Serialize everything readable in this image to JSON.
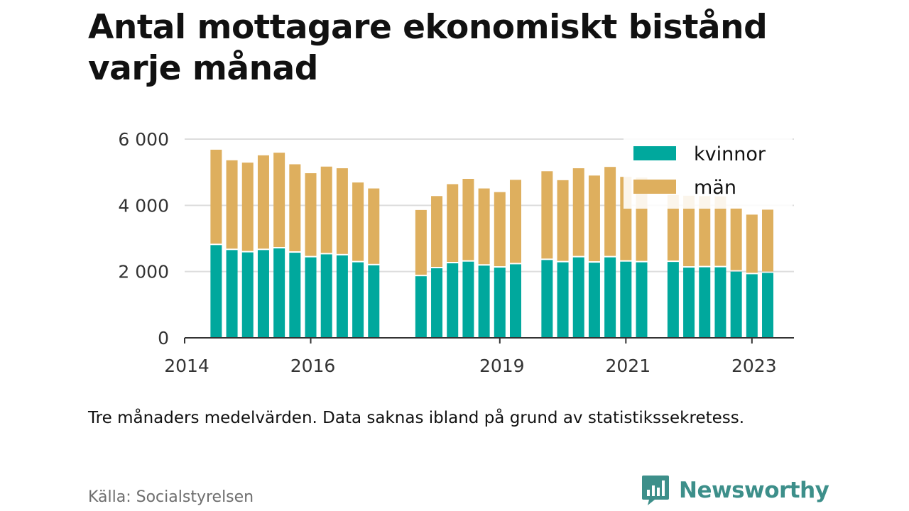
{
  "title_lines": [
    "Antal mottagare ekonomiskt bistånd",
    "varje månad"
  ],
  "note": "Tre månaders medelvärden. Data saknas ibland på grund av statistikssekretess.",
  "source": "Källa: Socialstyrelsen",
  "brand": {
    "name": "Newsworthy",
    "icon": "newsworthy-logo-icon",
    "color": "#3d8f8a"
  },
  "colors": {
    "kvinnor": "#00a89d",
    "man": "#deaf5e",
    "grid": "#dddddd",
    "axis": "#333333"
  },
  "chart_data": {
    "type": "bar",
    "stacked": true,
    "title": "",
    "xlabel": "",
    "ylabel": "",
    "ylim": [
      0,
      6000
    ],
    "yticks": [
      {
        "value": 0,
        "label": "0"
      },
      {
        "value": 2000,
        "label": "2 000"
      },
      {
        "value": 4000,
        "label": "4 000"
      },
      {
        "value": 6000,
        "label": "6 000"
      }
    ],
    "xlim": [
      "2014-01",
      "2023-09"
    ],
    "xticks": [
      {
        "x": "2014-01",
        "label": "2014"
      },
      {
        "x": "2016-01",
        "label": "2016"
      },
      {
        "x": "2019-01",
        "label": "2019"
      },
      {
        "x": "2021-01",
        "label": "2021"
      },
      {
        "x": "2023-01",
        "label": "2023"
      }
    ],
    "grid": true,
    "legend": "top-right",
    "x": [
      "2014-07",
      "2014-10",
      "2015-01",
      "2015-04",
      "2015-07",
      "2015-10",
      "2016-01",
      "2016-04",
      "2016-07",
      "2016-10",
      "2017-01",
      "2017-10",
      "2018-01",
      "2018-04",
      "2018-07",
      "2018-10",
      "2019-01",
      "2019-04",
      "2019-10",
      "2020-01",
      "2020-04",
      "2020-07",
      "2020-10",
      "2021-01",
      "2021-04",
      "2021-10",
      "2022-01",
      "2022-04",
      "2022-07",
      "2022-10",
      "2023-01",
      "2023-04"
    ],
    "series": [
      {
        "name": "kvinnor",
        "color": "#00a89d",
        "values": [
          2800,
          2650,
          2580,
          2650,
          2700,
          2570,
          2430,
          2520,
          2490,
          2280,
          2190,
          1860,
          2100,
          2250,
          2300,
          2180,
          2120,
          2220,
          2350,
          2280,
          2430,
          2270,
          2430,
          2300,
          2280,
          2290,
          2120,
          2130,
          2130,
          2000,
          1920,
          1960
        ]
      },
      {
        "name": "män",
        "color": "#deaf5e",
        "values": [
          2880,
          2710,
          2710,
          2860,
          2890,
          2670,
          2540,
          2650,
          2630,
          2410,
          2320,
          2000,
          2180,
          2390,
          2500,
          2330,
          2280,
          2550,
          2680,
          2480,
          2690,
          2630,
          2730,
          2560,
          2560,
          2020,
          2170,
          2150,
          2140,
          1920,
          1800,
          1910
        ]
      }
    ]
  }
}
